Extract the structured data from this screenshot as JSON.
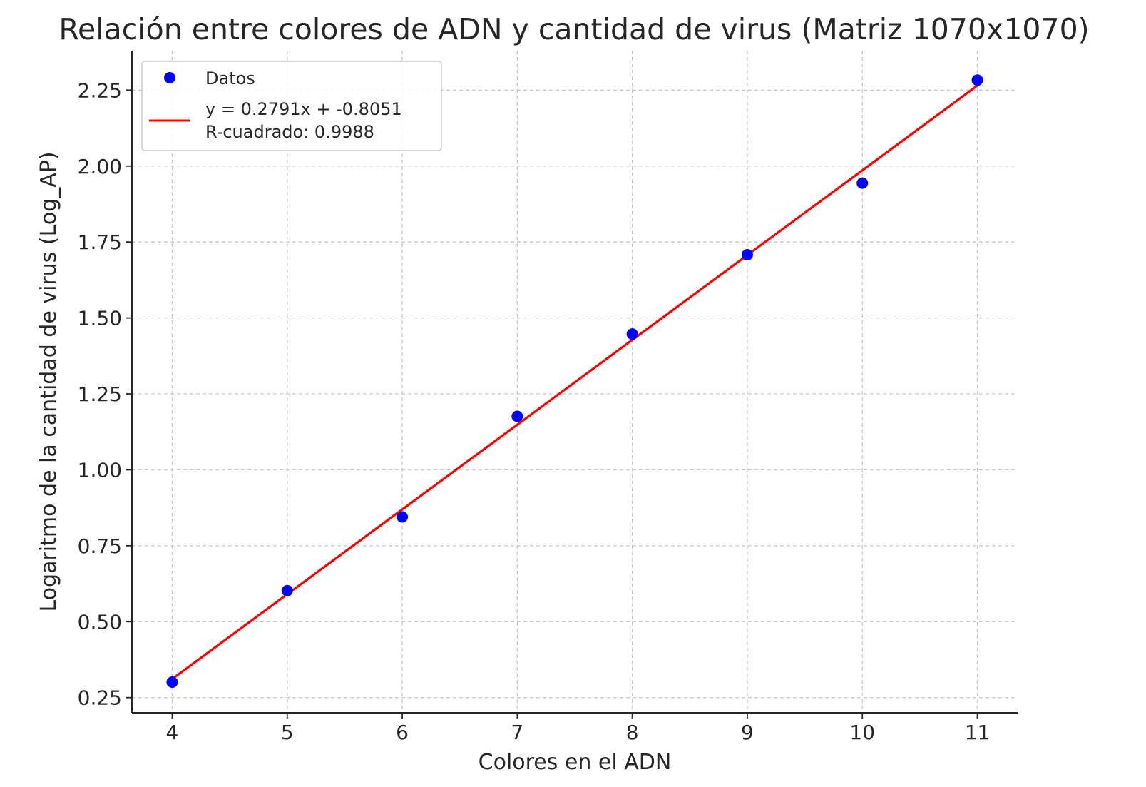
{
  "chart_data": {
    "type": "scatter",
    "title": "Relación entre colores de ADN y cantidad de virus (Matriz 1070x1070)",
    "xlabel": "Colores en el ADN",
    "ylabel": "Logaritmo de la cantidad de virus (Log_AP)",
    "xlim": [
      3.65,
      11.35
    ],
    "ylim": [
      0.2,
      2.38
    ],
    "grid": true,
    "legend_position": "top-left",
    "x_ticks": [
      {
        "value": 4,
        "label": "4"
      },
      {
        "value": 5,
        "label": "5"
      },
      {
        "value": 6,
        "label": "6"
      },
      {
        "value": 7,
        "label": "7"
      },
      {
        "value": 8,
        "label": "8"
      },
      {
        "value": 9,
        "label": "9"
      },
      {
        "value": 10,
        "label": "10"
      },
      {
        "value": 11,
        "label": "11"
      }
    ],
    "y_ticks": [
      {
        "value": 0.25,
        "label": "0.25"
      },
      {
        "value": 0.5,
        "label": "0.50"
      },
      {
        "value": 0.75,
        "label": "0.75"
      },
      {
        "value": 1.0,
        "label": "1.00"
      },
      {
        "value": 1.25,
        "label": "1.25"
      },
      {
        "value": 1.5,
        "label": "1.50"
      },
      {
        "value": 1.75,
        "label": "1.75"
      },
      {
        "value": 2.0,
        "label": "2.00"
      },
      {
        "value": 2.25,
        "label": "2.25"
      }
    ],
    "series": [
      {
        "name": "Datos",
        "kind": "scatter",
        "color": "#0000ff",
        "x": [
          4,
          5,
          6,
          7,
          8,
          9,
          10,
          11
        ],
        "y": [
          0.301,
          0.602,
          0.845,
          1.176,
          1.447,
          1.708,
          1.944,
          2.283
        ]
      },
      {
        "name": "y = 0.2791x + -0.8051\nR-cuadrado: 0.9988",
        "kind": "line",
        "color": "#ff0000",
        "slope": 0.2791,
        "intercept": -0.8051,
        "x": [
          4,
          11
        ]
      }
    ]
  }
}
